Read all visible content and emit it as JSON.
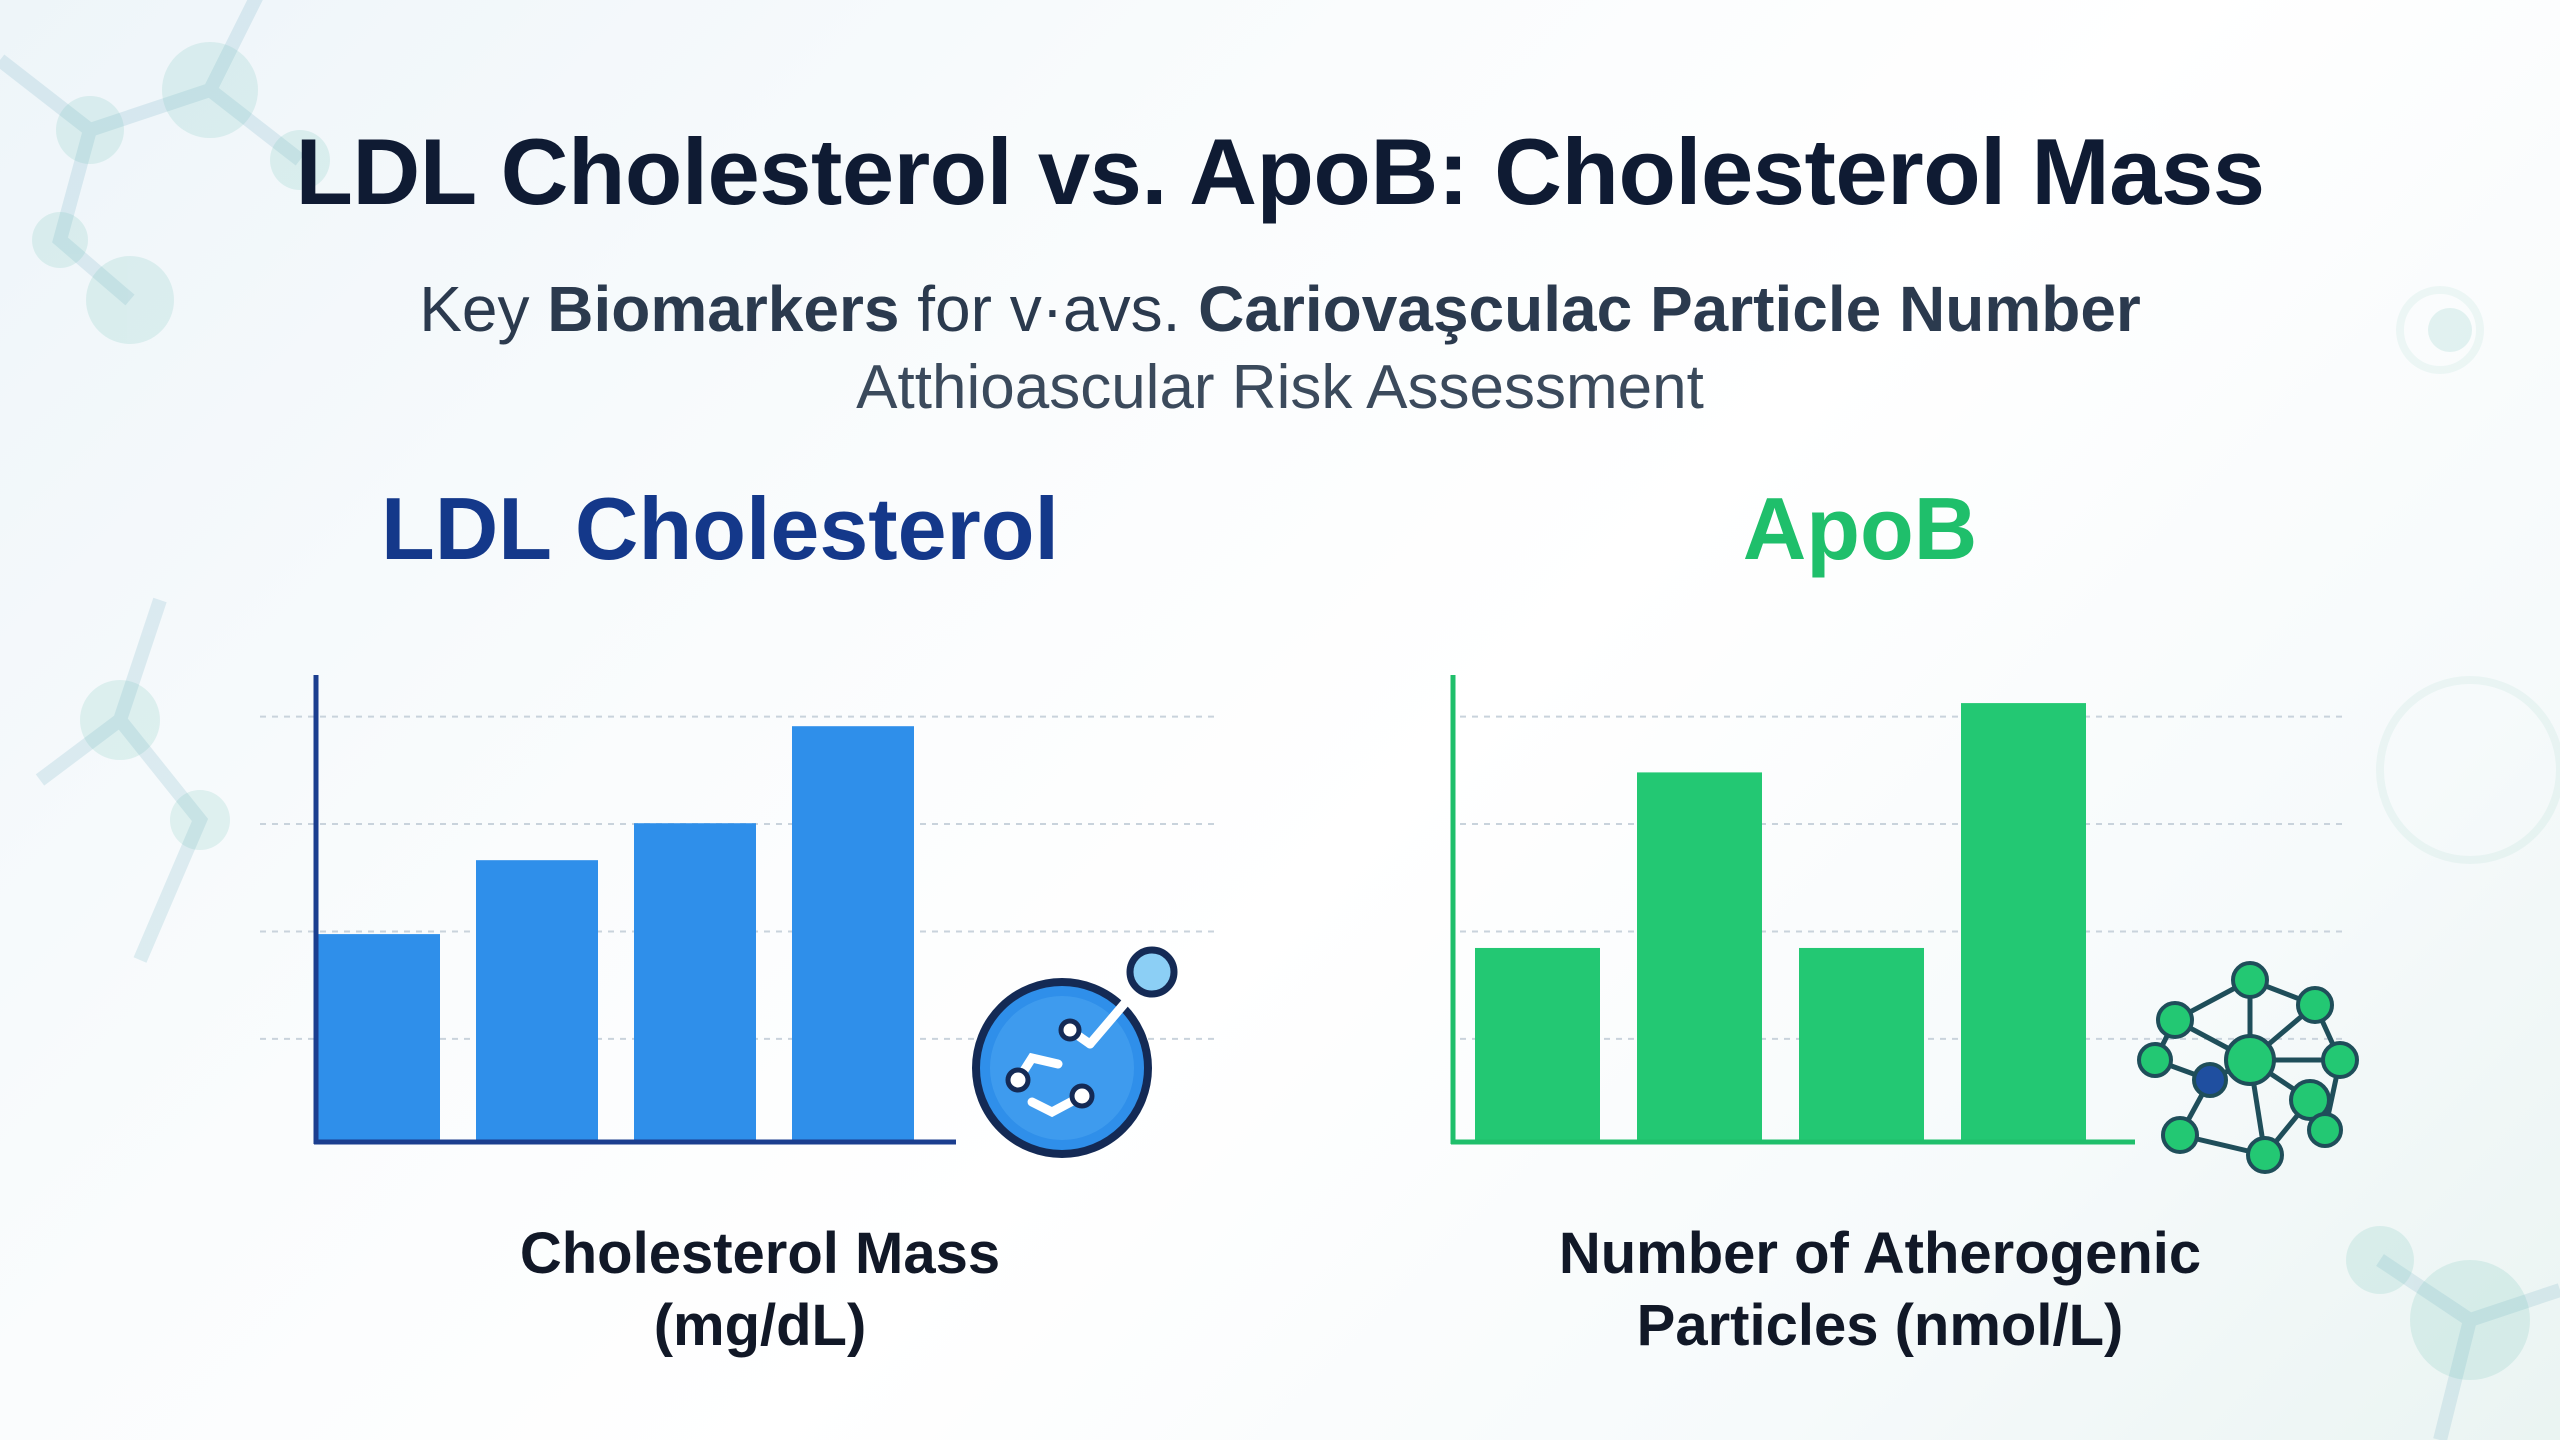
{
  "title": "LDL Cholesterol vs. ApoB: Cholesterol Mass",
  "subtitle": {
    "line1_start": "Key ",
    "line1_bold1": "Biomarkers",
    "line1_mid": " for v·avs. ",
    "line1_bold2": "Cariovaşculac Particle Number",
    "line2": "Atthioascular Risk Assessment"
  },
  "colors": {
    "ldl_bar": "#2f8fea",
    "ldl_axis": "#1b3e8f",
    "ldl_title": "#14388a",
    "apob_bar": "#23c873",
    "apob_axis": "#1fbf6b",
    "apob_title": "#1fbf6b"
  },
  "icons": [
    "lipoprotein-molecule-icon",
    "particle-network-icon"
  ],
  "chart_data": [
    {
      "type": "bar",
      "title": "LDL Cholesterol",
      "caption_line1": "Cholesterol Mass",
      "caption_line2": "(mg/dL)",
      "values": [
        0.45,
        0.61,
        0.69,
        0.9
      ],
      "ylim": [
        0,
        1
      ],
      "grid": true,
      "legend": "none"
    },
    {
      "type": "bar",
      "title": "ApoB",
      "caption_line1": "Number of Atherogenic",
      "caption_line2": "Particles (nmol/L)",
      "values": [
        0.42,
        0.8,
        0.42,
        0.95
      ],
      "ylim": [
        0,
        1
      ],
      "grid": true,
      "legend": "none"
    }
  ]
}
